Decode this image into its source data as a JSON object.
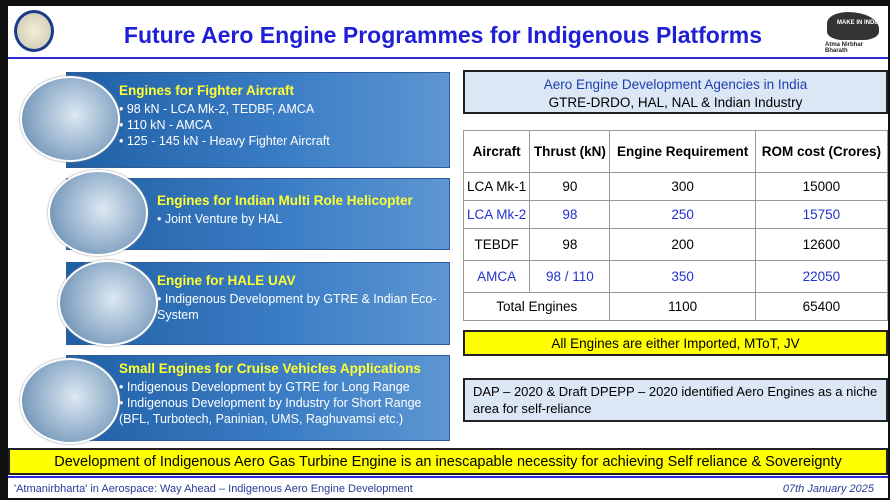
{
  "header": {
    "title": "Future Aero Engine Programmes for Indigenous Platforms",
    "right_logo_text": "MAKE IN INDIA",
    "right_logo_caption": "Atma Nirbhar Bharath"
  },
  "panels": [
    {
      "heading": "Engines for Fighter Aircraft",
      "items": [
        "98 kN - LCA Mk-2, TEDBF, AMCA",
        "110 kN - AMCA",
        "125 - 145 kN - Heavy Fighter Aircraft"
      ]
    },
    {
      "heading": "Engines for Indian Multi Role Helicopter",
      "items": [
        "Joint Venture by HAL"
      ]
    },
    {
      "heading": "Engine for HALE UAV",
      "items": [
        "Indigenous Development by GTRE & Indian Eco-System"
      ]
    },
    {
      "heading": "Small Engines for Cruise Vehicles Applications",
      "items": [
        "Indigenous Development  by GTRE for Long Range",
        "Indigenous Development  by Industry for Short Range (BFL, Turbotech, Paninian, UMS, Raghuvamsi etc.)"
      ]
    }
  ],
  "agencies": {
    "title": "Aero Engine Development Agencies in India",
    "list": "GTRE-DRDO, HAL, NAL & Indian Industry"
  },
  "table": {
    "headers": [
      "Aircraft",
      "Thrust (kN)",
      "Engine Requirement",
      "ROM cost (Crores)"
    ],
    "rows": [
      [
        "LCA Mk-1",
        "90",
        "300",
        "15000"
      ],
      [
        "LCA Mk-2",
        "98",
        "250",
        "15750"
      ],
      [
        "TEBDF",
        "98",
        "200",
        "12600"
      ],
      [
        "AMCA",
        "98 / 110",
        "350",
        "22050"
      ]
    ],
    "total": {
      "label": "Total Engines",
      "engines": "1100",
      "cost": "65400"
    }
  },
  "notes": {
    "engines": "All Engines are either Imported, MToT, JV",
    "dap": "DAP – 2020 & Draft DPEPP – 2020 identified Aero Engines as a niche area for self-reliance"
  },
  "banner": "Development of Indigenous Aero Gas Turbine Engine is an inescapable necessity for achieving Self reliance & Sovereignty",
  "footer": {
    "left": "'Atmanirbharta' in Aerospace: Way Ahead – Indigenous Aero Engine Development",
    "date": "07th January 2025"
  }
}
